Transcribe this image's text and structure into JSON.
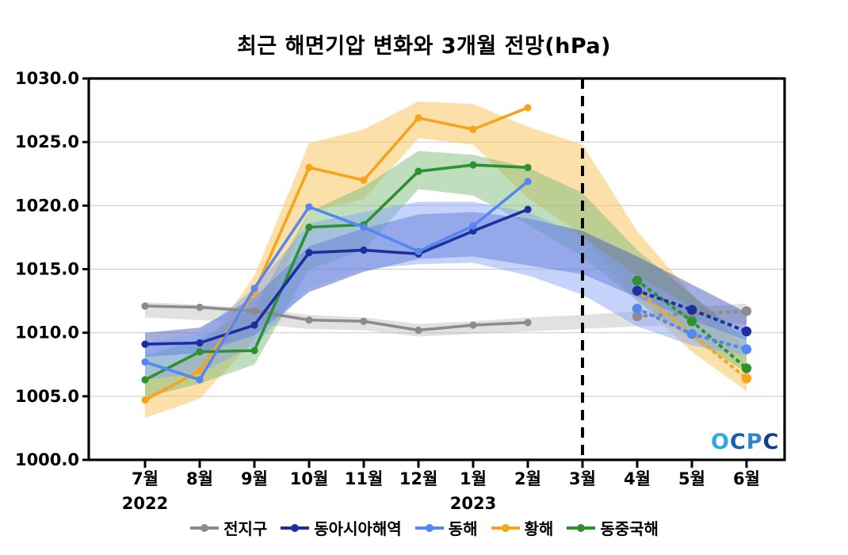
{
  "chart_data": {
    "type": "line",
    "title": "최근 해면기압 변화와 3개월 전망(hPa)",
    "x_categories": [
      "7월",
      "8월",
      "9월",
      "10월",
      "11월",
      "12월",
      "1월",
      "2월",
      "3월",
      "4월",
      "5월",
      "6월"
    ],
    "x_year_labels": [
      {
        "text": "2022",
        "month_index": 0
      },
      {
        "text": "2023",
        "month_index": 6
      }
    ],
    "ylim": [
      1000,
      1030
    ],
    "yticks": [
      {
        "value": 1000,
        "label": "1000.0"
      },
      {
        "value": 1005,
        "label": "1005.0"
      },
      {
        "value": 1010,
        "label": "1010.0"
      },
      {
        "value": 1015,
        "label": "1015.0"
      },
      {
        "value": 1020,
        "label": "1020.0"
      },
      {
        "value": 1025,
        "label": "1025.0"
      },
      {
        "value": 1030,
        "label": "1030.0"
      }
    ],
    "grid": "horizontal",
    "legend_position": "bottom",
    "divider_month_index": 8,
    "forecast_month_indices": [
      9,
      10,
      11
    ],
    "z_order": [
      "global",
      "yellow-sea",
      "east-china-sea",
      "east-asia",
      "east-sea"
    ],
    "series": [
      {
        "id": "global",
        "name": "전지구",
        "color": "#8c8c8c",
        "band_color": "rgba(175,175,175,0.38)",
        "observed": [
          1012.1,
          1012.0,
          1011.7,
          1011.0,
          1010.9,
          1010.2,
          1010.6,
          1010.8
        ],
        "forecast": [
          1011.3,
          1011.5,
          1011.7
        ],
        "band_lower": [
          1011.2,
          1011.0,
          1010.7,
          1010.3,
          1010.2,
          1009.7,
          1009.9,
          1010.1,
          1010.3,
          1010.5,
          1010.6,
          1010.7
        ],
        "band_upper": [
          1012.4,
          1012.2,
          1011.9,
          1011.4,
          1011.2,
          1010.7,
          1010.9,
          1011.2,
          1011.4,
          1011.7,
          1012.0,
          1012.3
        ]
      },
      {
        "id": "east-asia",
        "name": "동아시아해역",
        "color": "#1c2f9c",
        "band_color": "rgba(72,92,190,0.50)",
        "observed": [
          1009.1,
          1009.2,
          1010.6,
          1016.3,
          1016.5,
          1016.2,
          1018.0,
          1019.7
        ],
        "forecast": [
          1013.3,
          1011.8,
          1010.1
        ],
        "band_lower": [
          1008.1,
          1008.4,
          1009.8,
          1013.2,
          1014.8,
          1015.8,
          1016.0,
          1015.3,
          1014.6,
          1012.8,
          1011.0,
          1009.4
        ],
        "band_upper": [
          1010.0,
          1010.4,
          1012.8,
          1016.8,
          1018.2,
          1019.3,
          1019.5,
          1019.0,
          1018.0,
          1016.0,
          1013.8,
          1011.6
        ]
      },
      {
        "id": "east-sea",
        "name": "동해",
        "color": "#5587f0",
        "band_color": "rgba(133,163,246,0.48)",
        "observed": [
          1007.7,
          1006.3,
          1013.5,
          1019.9,
          1018.3,
          1016.4,
          1018.4,
          1021.9
        ],
        "forecast": [
          1011.9,
          1009.9,
          1008.7
        ],
        "band_lower": [
          1006.3,
          1006.8,
          1009.0,
          1013.5,
          1015.0,
          1015.4,
          1015.5,
          1014.5,
          1013.0,
          1010.5,
          1009.0,
          1008.2
        ],
        "band_upper": [
          1009.2,
          1010.0,
          1013.5,
          1018.6,
          1019.5,
          1020.3,
          1020.3,
          1019.5,
          1017.5,
          1014.5,
          1012.0,
          1009.9
        ]
      },
      {
        "id": "yellow-sea",
        "name": "황해",
        "color": "#f7a41d",
        "band_color": "rgba(249,198,100,0.55)",
        "observed": [
          1004.7,
          1007.0,
          1013.2,
          1023.0,
          1022.0,
          1026.9,
          1026.0,
          1027.7
        ],
        "forecast": [
          1013.3,
          1009.9,
          1006.4
        ],
        "band_lower": [
          1003.3,
          1004.8,
          1009.5,
          1019.5,
          1020.5,
          1025.3,
          1024.8,
          1020.6,
          1017.7,
          1012.5,
          1008.5,
          1005.4
        ],
        "band_upper": [
          1006.3,
          1008.3,
          1014.5,
          1024.9,
          1026.0,
          1028.2,
          1028.0,
          1026.2,
          1024.8,
          1018.0,
          1013.0,
          1008.7
        ]
      },
      {
        "id": "east-china-sea",
        "name": "동중국해",
        "color": "#2e9130",
        "band_color": "rgba(120,185,120,0.48)",
        "observed": [
          1006.3,
          1008.5,
          1008.6,
          1018.3,
          1018.5,
          1022.7,
          1023.2,
          1023.0
        ],
        "forecast": [
          1014.1,
          1010.9,
          1007.2
        ],
        "band_lower": [
          1004.9,
          1006.0,
          1007.5,
          1015.0,
          1016.5,
          1021.3,
          1020.8,
          1018.5,
          1016.0,
          1012.5,
          1009.5,
          1006.9
        ],
        "band_upper": [
          1008.2,
          1009.5,
          1012.0,
          1019.5,
          1021.5,
          1024.3,
          1024.0,
          1023.0,
          1021.0,
          1016.5,
          1013.0,
          1009.4
        ]
      }
    ],
    "watermark": {
      "text": "OCPC",
      "letter_colors": [
        "#2BA9E0",
        "#1C5FAD",
        "#2F86C9",
        "#123E8E"
      ]
    }
  }
}
